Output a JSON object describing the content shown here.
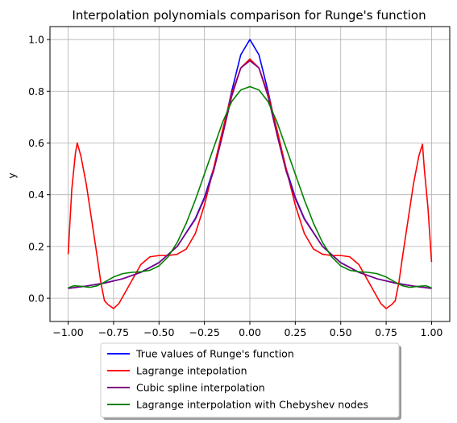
{
  "chart_data": {
    "type": "line",
    "title": "Interpolation polynomials comparison for Runge's function",
    "xlabel": "",
    "ylabel": "y",
    "xlim": [
      -1.1,
      1.1
    ],
    "ylim": [
      -0.09,
      1.05
    ],
    "grid": true,
    "legend_placement": "below",
    "x_ticks": [
      -1.0,
      -0.75,
      -0.5,
      -0.25,
      0.0,
      0.25,
      0.5,
      0.75,
      1.0
    ],
    "x_tick_labels": [
      "−1.00",
      "−0.75",
      "−0.50",
      "−0.25",
      "0.00",
      "0.25",
      "0.50",
      "0.75",
      "1.00"
    ],
    "y_ticks": [
      0.0,
      0.2,
      0.4,
      0.6,
      0.8,
      1.0
    ],
    "y_tick_labels": [
      "0.0",
      "0.2",
      "0.4",
      "0.6",
      "0.8",
      "1.0"
    ],
    "series": [
      {
        "name": "True values of Runge's function",
        "color": "#0000ff",
        "x": [
          -1.0,
          -0.9,
          -0.8,
          -0.7,
          -0.6,
          -0.5,
          -0.4,
          -0.3,
          -0.25,
          -0.2,
          -0.15,
          -0.1,
          -0.05,
          0.0,
          0.05,
          0.1,
          0.15,
          0.2,
          0.25,
          0.3,
          0.4,
          0.5,
          0.6,
          0.7,
          0.8,
          0.9,
          1.0
        ],
        "y": [
          0.038,
          0.047,
          0.059,
          0.075,
          0.1,
          0.138,
          0.2,
          0.308,
          0.39,
          0.5,
          0.64,
          0.8,
          0.941,
          1.0,
          0.941,
          0.8,
          0.64,
          0.5,
          0.39,
          0.308,
          0.2,
          0.138,
          0.1,
          0.075,
          0.059,
          0.047,
          0.038
        ]
      },
      {
        "name": "Lagrange intepolation",
        "color": "#ff0000",
        "x": [
          -1.0,
          -0.98,
          -0.96,
          -0.95,
          -0.93,
          -0.9,
          -0.87,
          -0.84,
          -0.82,
          -0.8,
          -0.78,
          -0.75,
          -0.72,
          -0.68,
          -0.64,
          -0.6,
          -0.55,
          -0.5,
          -0.45,
          -0.4,
          -0.35,
          -0.3,
          -0.25,
          -0.2,
          -0.15,
          -0.1,
          -0.05,
          0.0,
          0.05,
          0.1,
          0.15,
          0.2,
          0.25,
          0.3,
          0.35,
          0.4,
          0.45,
          0.5,
          0.55,
          0.6,
          0.64,
          0.68,
          0.72,
          0.75,
          0.78,
          0.8,
          0.82,
          0.84,
          0.87,
          0.9,
          0.93,
          0.95,
          0.96,
          0.98,
          1.0
        ],
        "y": [
          0.17,
          0.42,
          0.56,
          0.6,
          0.55,
          0.44,
          0.3,
          0.16,
          0.06,
          -0.01,
          -0.025,
          -0.04,
          -0.02,
          0.03,
          0.08,
          0.13,
          0.16,
          0.165,
          0.165,
          0.17,
          0.19,
          0.25,
          0.36,
          0.5,
          0.65,
          0.79,
          0.89,
          0.925,
          0.89,
          0.79,
          0.65,
          0.5,
          0.36,
          0.25,
          0.19,
          0.17,
          0.165,
          0.165,
          0.16,
          0.13,
          0.08,
          0.03,
          -0.02,
          -0.04,
          -0.025,
          -0.01,
          0.06,
          0.16,
          0.3,
          0.44,
          0.55,
          0.595,
          0.5,
          0.35,
          0.14
        ]
      },
      {
        "name": "Cubic spline interpolation",
        "color": "#800080",
        "x": [
          -1.0,
          -0.9,
          -0.8,
          -0.7,
          -0.6,
          -0.5,
          -0.4,
          -0.3,
          -0.25,
          -0.2,
          -0.15,
          -0.1,
          -0.05,
          0.0,
          0.05,
          0.1,
          0.15,
          0.2,
          0.25,
          0.3,
          0.4,
          0.5,
          0.6,
          0.7,
          0.8,
          0.9,
          1.0
        ],
        "y": [
          0.038,
          0.047,
          0.058,
          0.075,
          0.1,
          0.137,
          0.2,
          0.305,
          0.385,
          0.49,
          0.63,
          0.78,
          0.89,
          0.918,
          0.89,
          0.78,
          0.63,
          0.49,
          0.385,
          0.305,
          0.2,
          0.137,
          0.1,
          0.075,
          0.058,
          0.047,
          0.038
        ]
      },
      {
        "name": "Lagrange interpolation with Chebyshev nodes",
        "color": "#008000",
        "x": [
          -1.0,
          -0.97,
          -0.93,
          -0.88,
          -0.84,
          -0.8,
          -0.75,
          -0.7,
          -0.65,
          -0.6,
          -0.55,
          -0.5,
          -0.45,
          -0.4,
          -0.35,
          -0.3,
          -0.25,
          -0.2,
          -0.15,
          -0.1,
          -0.05,
          0.0,
          0.05,
          0.1,
          0.15,
          0.2,
          0.25,
          0.3,
          0.35,
          0.4,
          0.45,
          0.5,
          0.55,
          0.6,
          0.65,
          0.7,
          0.75,
          0.8,
          0.84,
          0.88,
          0.93,
          0.97,
          1.0
        ],
        "y": [
          0.04,
          0.048,
          0.046,
          0.042,
          0.048,
          0.062,
          0.082,
          0.095,
          0.1,
          0.102,
          0.108,
          0.125,
          0.16,
          0.215,
          0.29,
          0.38,
          0.48,
          0.58,
          0.68,
          0.76,
          0.805,
          0.818,
          0.805,
          0.76,
          0.68,
          0.58,
          0.48,
          0.38,
          0.29,
          0.215,
          0.16,
          0.125,
          0.108,
          0.102,
          0.1,
          0.095,
          0.082,
          0.062,
          0.048,
          0.042,
          0.046,
          0.048,
          0.04
        ]
      }
    ]
  }
}
